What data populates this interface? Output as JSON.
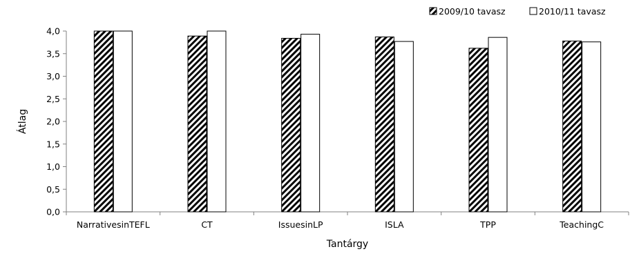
{
  "chart_data": {
    "type": "bar",
    "title": "",
    "xlabel": "Tantárgy",
    "ylabel": "Átlag",
    "ylim": [
      0,
      4
    ],
    "yticks": [
      "0,0",
      "0,5",
      "1,0",
      "1,5",
      "2,0",
      "2,5",
      "3,0",
      "3,5",
      "4,0"
    ],
    "categories": [
      "NarrativesinTEFL",
      "CT",
      "IssuesinLP",
      "ISLA",
      "TPP",
      "TeachingC"
    ],
    "series": [
      {
        "name": "2009/10 tavasz",
        "pattern": "diagonal-hatch",
        "values": [
          4.0,
          3.89,
          3.84,
          3.87,
          3.62,
          3.78
        ]
      },
      {
        "name": "2010/11 tavasz",
        "pattern": "white",
        "values": [
          4.0,
          4.0,
          3.93,
          3.77,
          3.86,
          3.76
        ]
      }
    ],
    "legend": "top-right",
    "grid": false,
    "colors": {
      "axis": "#808080",
      "bar_outline": "#000000",
      "fill_white": "#ffffff",
      "hatch": "#000000"
    }
  }
}
